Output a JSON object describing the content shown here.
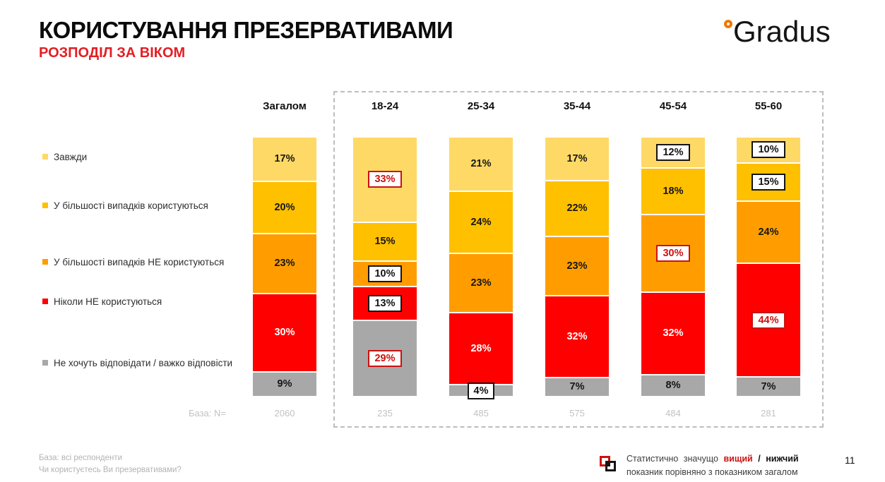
{
  "header": {
    "title": "КОРИСТУВАННЯ ПРЕЗЕРВАТИВАМИ",
    "subtitle": "РОЗПОДІЛ ЗА ВІКОМ",
    "brand": "Gradus"
  },
  "chart_data": {
    "type": "bar",
    "stacked": true,
    "orientation": "vertical",
    "unit": "%",
    "legend_position": "left",
    "categories": [
      "Загалом",
      "18-24",
      "25-34",
      "35-44",
      "45-54",
      "55-60"
    ],
    "series": [
      {
        "name": "Завжди",
        "color": "#FFD966",
        "values": [
          17,
          33,
          21,
          17,
          12,
          10
        ],
        "sig": [
          null,
          "higher",
          null,
          null,
          "lower",
          "lower"
        ]
      },
      {
        "name": "У більшості випадків користуються",
        "color": "#FFC000",
        "values": [
          20,
          15,
          24,
          22,
          18,
          15
        ],
        "sig": [
          null,
          null,
          null,
          null,
          null,
          "lower"
        ]
      },
      {
        "name": "У більшості випадків НЕ користуються",
        "color": "#FF9D00",
        "values": [
          23,
          10,
          23,
          23,
          30,
          24
        ],
        "sig": [
          null,
          "lower",
          null,
          null,
          "higher",
          null
        ]
      },
      {
        "name": "Ніколи НЕ користуються",
        "color": "#FF0000",
        "values": [
          30,
          13,
          28,
          32,
          32,
          44
        ],
        "sig": [
          null,
          "lower",
          null,
          null,
          null,
          "higher"
        ]
      },
      {
        "name": "Не хочуть відповідати / важко відповісти",
        "color": "#A8A8A8",
        "values": [
          9,
          29,
          4,
          7,
          8,
          7
        ],
        "sig": [
          null,
          "higher",
          "lower",
          null,
          null,
          null
        ]
      }
    ],
    "base_label": "База: N=",
    "bases": [
      "2060",
      "235",
      "485",
      "575",
      "484",
      "281"
    ],
    "significance_colors": {
      "higher": "#CC1111",
      "lower": "#141414"
    },
    "grouped_outline_categories": [
      "18-24",
      "25-34",
      "35-44",
      "45-54",
      "55-60"
    ]
  },
  "footer": {
    "left_line1": "База: всі респонденти",
    "left_line2": "Чи користуєтесь Ви презервативами?",
    "note_prefix": "Статистично значущо",
    "note_higher": "вищий",
    "note_slash": "/",
    "note_lower": "нижчий",
    "note_suffix": "показник порівняно з показником загалом",
    "page_number": "11"
  }
}
